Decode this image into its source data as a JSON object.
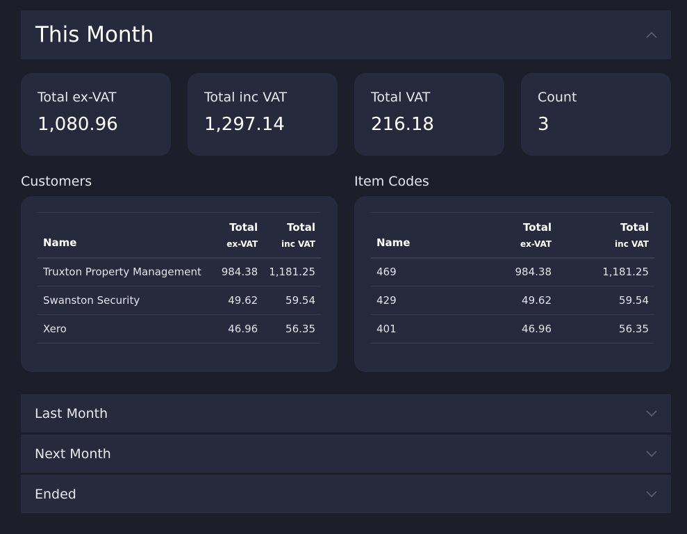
{
  "sections": {
    "current": {
      "title": "This Month"
    },
    "last_month": {
      "title": "Last Month"
    },
    "next_month": {
      "title": "Next Month"
    },
    "ended": {
      "title": "Ended"
    }
  },
  "stats": [
    {
      "label": "Total ex-VAT",
      "value": "1,080.96"
    },
    {
      "label": "Total inc VAT",
      "value": "1,297.14"
    },
    {
      "label": "Total VAT",
      "value": "216.18"
    },
    {
      "label": "Count",
      "value": "3"
    }
  ],
  "customers": {
    "title": "Customers",
    "headers": {
      "name": "Name",
      "total_top": "Total",
      "ex_vat": "ex-VAT",
      "inc_vat": "inc VAT"
    },
    "rows": [
      {
        "name": "Truxton Property Management",
        "ex": "984.38",
        "inc": "1,181.25"
      },
      {
        "name": "Swanston Security",
        "ex": "49.62",
        "inc": "59.54"
      },
      {
        "name": "Xero",
        "ex": "46.96",
        "inc": "56.35"
      }
    ]
  },
  "item_codes": {
    "title": "Item Codes",
    "headers": {
      "name": "Name",
      "total_top": "Total",
      "ex_vat": "ex-VAT",
      "inc_vat": "inc VAT"
    },
    "rows": [
      {
        "name": "469",
        "ex": "984.38",
        "inc": "1,181.25"
      },
      {
        "name": "429",
        "ex": "49.62",
        "inc": "59.54"
      },
      {
        "name": "401",
        "ex": "46.96",
        "inc": "56.35"
      }
    ]
  },
  "icons": {
    "expanded": "chevron-up-icon",
    "collapsed": "chevron-down-icon"
  }
}
